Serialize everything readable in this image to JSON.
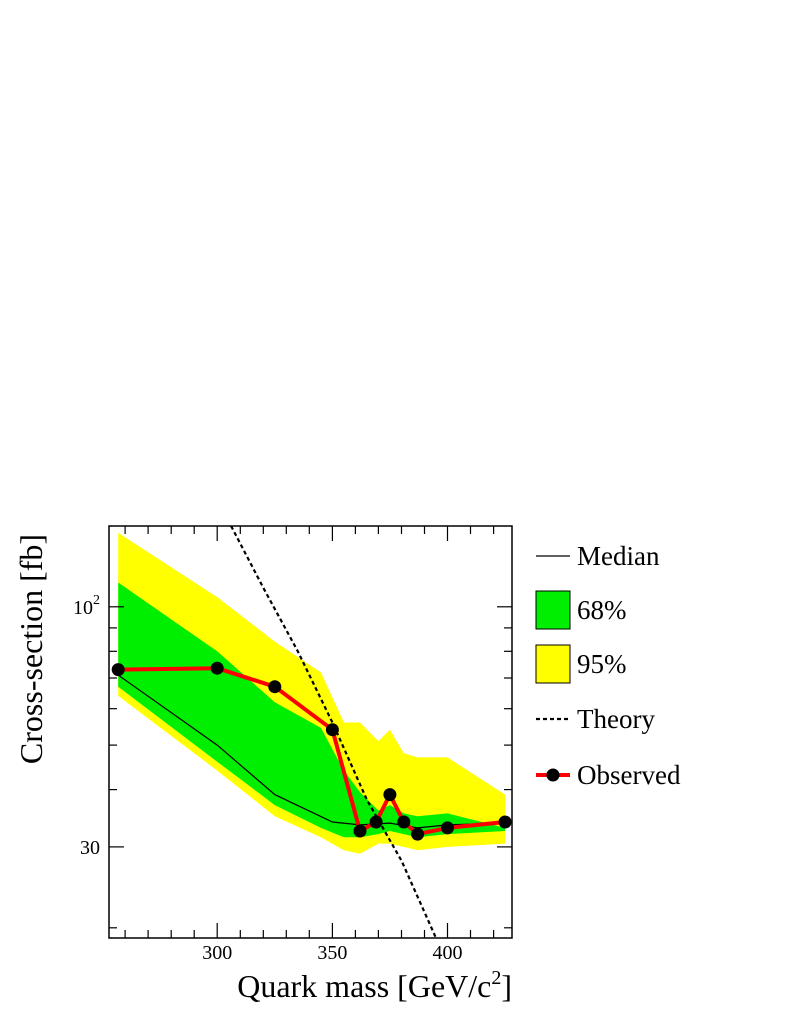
{
  "chart_data": {
    "type": "line",
    "title": "",
    "xlabel": "Quark mass [GeV/c",
    "xlabel_sup": "2",
    "xlabel_end": "]",
    "ylabel": "Cross-section [fb]",
    "x_log": false,
    "y_log": true,
    "xlim": [
      253,
      428
    ],
    "ylim": [
      19,
      150
    ],
    "x_ticks": [
      300,
      350,
      400
    ],
    "x_tick_labels": [
      "300",
      "350",
      "400"
    ],
    "y_tick_labels": [
      {
        "value": 100,
        "base": "10",
        "exp": "2"
      },
      {
        "value": 30,
        "base": "30",
        "exp": ""
      }
    ],
    "band_95": {
      "name": "95%",
      "color": "#ffff00",
      "x": [
        257,
        300,
        325,
        345,
        355,
        362,
        370,
        375,
        381,
        387,
        400,
        425
      ],
      "upper": [
        145,
        105,
        84,
        72,
        56,
        56,
        51,
        54,
        48,
        47,
        47,
        39
      ],
      "lower": [
        64,
        44,
        35,
        31.5,
        29.5,
        29,
        30.5,
        30.5,
        30,
        29.5,
        30,
        30.5
      ]
    },
    "band_68": {
      "name": "68%",
      "color": "#00ee00",
      "x": [
        257,
        300,
        325,
        345,
        355,
        362,
        370,
        375,
        381,
        387,
        400,
        425
      ],
      "upper": [
        113,
        80,
        62,
        54.5,
        44,
        39.5,
        36,
        37,
        35.5,
        35,
        35.5,
        33
      ],
      "lower": [
        67,
        46,
        37,
        33,
        31.5,
        31.5,
        32,
        32.5,
        32,
        31.5,
        32,
        32.5
      ]
    },
    "series": [
      {
        "name": "Median",
        "style": "thin-solid",
        "color": "#000000",
        "x": [
          257,
          300,
          325,
          350,
          362,
          375,
          387,
          400,
          425
        ],
        "values": [
          71,
          50,
          39,
          34,
          33.5,
          33.8,
          33,
          33.5,
          33.8
        ]
      },
      {
        "name": "Theory",
        "style": "dotted",
        "color": "#000000",
        "x": [
          306,
          320,
          335,
          350,
          365,
          380,
          395
        ],
        "values": [
          150,
          110,
          80,
          56,
          38,
          28,
          19
        ]
      },
      {
        "name": "Observed",
        "style": "thick-markers",
        "color": "#ff0000",
        "marker_color": "#000000",
        "x": [
          257,
          300,
          325,
          350,
          362,
          369,
          375,
          381,
          387,
          400,
          425
        ],
        "values": [
          73,
          73.5,
          67,
          54,
          32.5,
          34,
          39,
          34,
          32,
          33,
          34
        ]
      }
    ],
    "legend": {
      "position": "right",
      "items": [
        {
          "label": "Median",
          "kind": "line"
        },
        {
          "label": "68%",
          "kind": "box",
          "color": "#00ee00"
        },
        {
          "label": "95%",
          "kind": "box",
          "color": "#ffff00"
        },
        {
          "label": "Theory",
          "kind": "dotted"
        },
        {
          "label": "Observed",
          "kind": "marker-line"
        }
      ]
    }
  }
}
